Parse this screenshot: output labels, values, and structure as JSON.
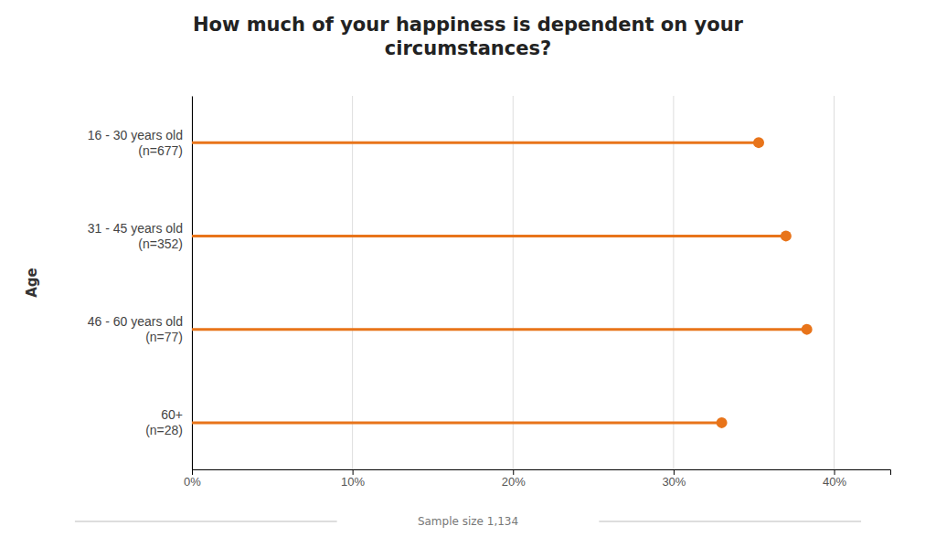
{
  "chart_data": {
    "type": "lollipop",
    "orientation": "horizontal",
    "title": "How much of your happiness is dependent on your\ncircumstances?",
    "categories": [
      "16 - 30 years old\n(n=677)",
      "31 - 45 years old\n(n=352)",
      "46 - 60 years old\n(n=77)",
      "60+\n(n=28)"
    ],
    "values": [
      0.353,
      0.37,
      0.383,
      0.33
    ],
    "color": "#E8741A",
    "xlabel": "Sample size 1,134",
    "ylabel": "Age",
    "xlim": [
      0,
      0.435
    ],
    "xticks": [
      {
        "value": 0.0,
        "label": "0%"
      },
      {
        "value": 0.1,
        "label": "10%"
      },
      {
        "value": 0.2,
        "label": "20%"
      },
      {
        "value": 0.3,
        "label": "30%"
      },
      {
        "value": 0.4,
        "label": "40%"
      }
    ],
    "grid": true
  }
}
